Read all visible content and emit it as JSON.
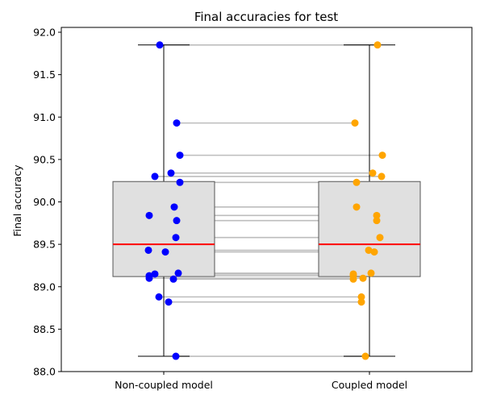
{
  "chart_data": {
    "type": "box",
    "title": "Final accuracies for test",
    "xlabel": "",
    "ylabel": "Final accuracy",
    "ylim": [
      88.0,
      92.05
    ],
    "yticks": [
      88.0,
      88.5,
      89.0,
      89.5,
      90.0,
      90.5,
      91.0,
      91.5,
      92.0
    ],
    "ytick_labels": [
      "88.0",
      "88.5",
      "89.0",
      "89.5",
      "90.0",
      "90.5",
      "91.0",
      "91.5",
      "92.0"
    ],
    "categories": [
      "Non-coupled model",
      "Coupled model"
    ],
    "grid": false,
    "colors": {
      "box_fill": "#e0e0e0",
      "box_edge": "#555555",
      "median": "#ff0000",
      "whisker": "#000000",
      "pair_line": "#bdbdbd",
      "non_coupled_points": "#0000ff",
      "coupled_points": "#ffa500"
    },
    "boxes": [
      {
        "category": "Non-coupled model",
        "whisker_low": 88.18,
        "q1": 89.12,
        "median": 89.5,
        "q3": 90.24,
        "whisker_high": 91.85
      },
      {
        "category": "Coupled model",
        "whisker_low": 88.18,
        "q1": 89.12,
        "median": 89.5,
        "q3": 90.24,
        "whisker_high": 91.85
      }
    ],
    "series": [
      {
        "values": [
          91.85,
          90.93,
          90.55,
          90.34,
          90.3,
          90.23,
          89.94,
          89.84,
          89.78,
          89.58,
          89.43,
          89.41,
          89.16,
          89.15,
          89.13,
          89.1,
          89.09,
          88.88,
          88.82,
          88.18
        ]
      },
      {
        "values": [
          91.85,
          90.93,
          90.55,
          90.34,
          90.3,
          90.23,
          89.94,
          89.84,
          89.78,
          89.58,
          89.43,
          89.41,
          89.16,
          89.15,
          89.13,
          89.1,
          89.09,
          88.88,
          88.82,
          88.18
        ]
      }
    ]
  }
}
